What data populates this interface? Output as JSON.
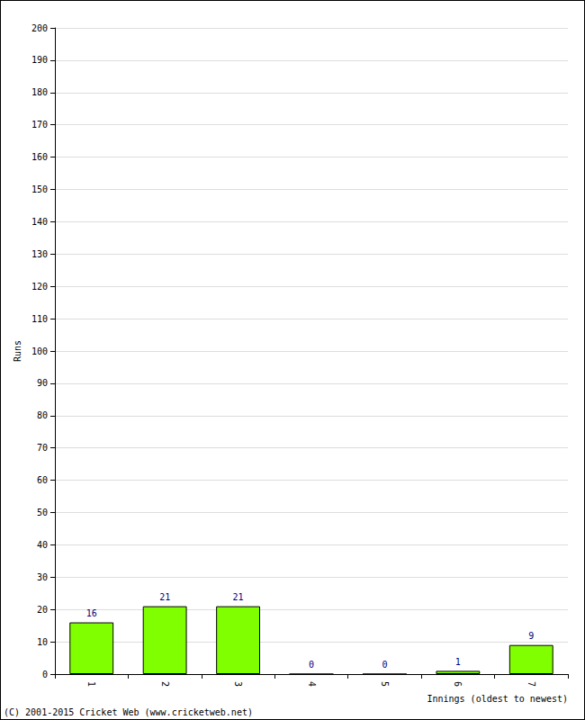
{
  "chart_data": {
    "type": "bar",
    "categories": [
      "1",
      "2",
      "3",
      "4",
      "5",
      "6",
      "7"
    ],
    "values": [
      16,
      21,
      21,
      0,
      0,
      1,
      9
    ],
    "color": "#80ff00",
    "x_label": "Innings (oldest to newest)",
    "y_label": "Runs",
    "annotation": "(C) 2001-2015 Cricket Web (www.cricketweb.net)",
    "ylim": [
      0,
      200
    ],
    "yticks": [
      0,
      10,
      20,
      30,
      40,
      50,
      60,
      70,
      80,
      90,
      100,
      110,
      120,
      130,
      140,
      150,
      160,
      170,
      180,
      190,
      200
    ],
    "grid": true,
    "data_labels": true
  }
}
